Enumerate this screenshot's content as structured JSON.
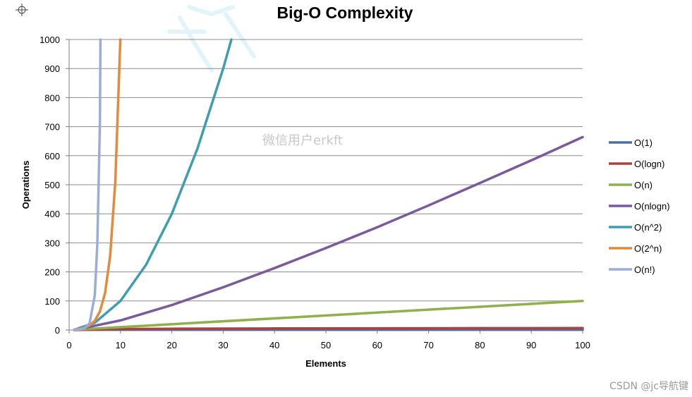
{
  "chart_data": {
    "type": "line",
    "title": "Big-O Complexity",
    "xlabel": "Elements",
    "ylabel": "Operations",
    "xlim": [
      0,
      100
    ],
    "ylim": [
      0,
      1000
    ],
    "x_ticks": [
      0,
      10,
      20,
      30,
      40,
      50,
      60,
      70,
      80,
      90,
      100
    ],
    "y_ticks": [
      0,
      100,
      200,
      300,
      400,
      500,
      600,
      700,
      800,
      900,
      1000
    ],
    "grid": "horizontal",
    "legend_position": "right",
    "series": [
      {
        "name": "O(1)",
        "color": "#4a6fa5",
        "x": [
          1,
          100
        ],
        "y": [
          1,
          1
        ]
      },
      {
        "name": "O(logn)",
        "color": "#b0403c",
        "x": [
          1,
          10,
          20,
          40,
          60,
          80,
          100
        ],
        "y": [
          0,
          3.3,
          4.3,
          5.3,
          5.9,
          6.3,
          6.6
        ]
      },
      {
        "name": "O(n)",
        "color": "#8fb04a",
        "x": [
          1,
          100
        ],
        "y": [
          1,
          100
        ]
      },
      {
        "name": "O(nlogn)",
        "color": "#7a5a9c",
        "x": [
          1,
          10,
          20,
          30,
          40,
          50,
          60,
          70,
          80,
          90,
          100
        ],
        "y": [
          0,
          33,
          86,
          147,
          213,
          282,
          354,
          429,
          506,
          584,
          664
        ]
      },
      {
        "name": "O(n^2)",
        "color": "#3f9db1",
        "x": [
          1,
          5,
          10,
          15,
          20,
          25,
          30,
          31.6
        ],
        "y": [
          1,
          25,
          100,
          225,
          400,
          625,
          900,
          1000
        ]
      },
      {
        "name": "O(2^n)",
        "color": "#e48a3c",
        "x": [
          1,
          2,
          3,
          4,
          5,
          6,
          7,
          8,
          9,
          9.97
        ],
        "y": [
          2,
          4,
          8,
          16,
          32,
          64,
          128,
          256,
          512,
          1000
        ]
      },
      {
        "name": "O(n!)",
        "color": "#9aacd8",
        "x": [
          1,
          2,
          3,
          4,
          5,
          5.5,
          6,
          6.1
        ],
        "y": [
          1,
          2,
          6,
          24,
          120,
          300,
          720,
          1000
        ]
      }
    ]
  },
  "watermark": {
    "text": "微信用户erkft",
    "credit": "CSDN @jc导航键"
  },
  "ui": {
    "crosshair_icon": "crosshair-icon"
  }
}
